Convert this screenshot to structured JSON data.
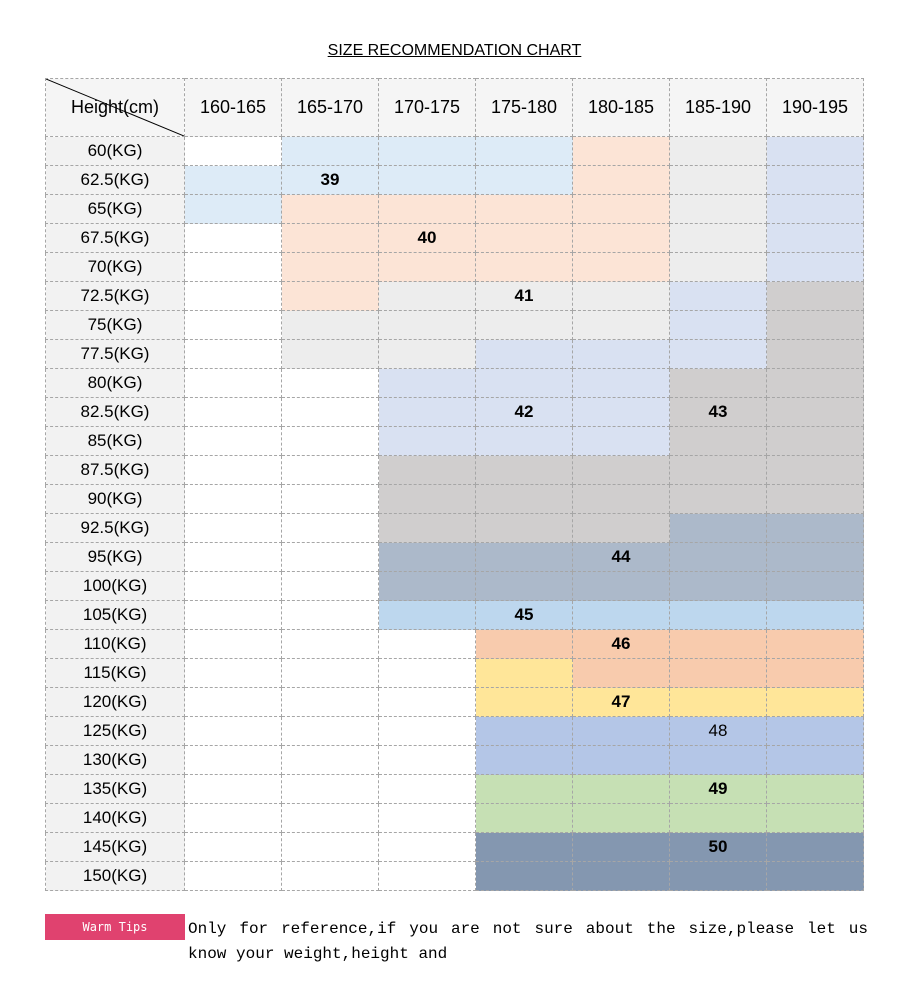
{
  "title": "SIZE RECOMMENDATION CHART",
  "corner_label": "Height(cm)",
  "heights": [
    "160-165",
    "165-170",
    "170-175",
    "175-180",
    "180-185",
    "185-190",
    "190-195"
  ],
  "colors": {
    "W": "#ffffff",
    "L": "#ddebf7",
    "P": "#fce4d6",
    "G": "#ededed",
    "B": "#d9e1f2",
    "D": "#d0cece",
    "S": "#acb9ca",
    "C": "#bdd7ee",
    "O": "#f8cbad",
    "Y": "#ffe699",
    "V": "#b4c6e7",
    "N": "#c6e0b4",
    "K": "#8497b0"
  },
  "rows": [
    {
      "weight": "60(KG)",
      "cells": [
        "W",
        "L",
        "L",
        "L",
        "P",
        "G",
        "B"
      ]
    },
    {
      "weight": "62.5(KG)",
      "cells": [
        "L",
        "L",
        "L",
        "L",
        "P",
        "G",
        "B"
      ]
    },
    {
      "weight": "65(KG)",
      "cells": [
        "L",
        "P",
        "P",
        "P",
        "P",
        "G",
        "B"
      ]
    },
    {
      "weight": "67.5(KG)",
      "cells": [
        "W",
        "P",
        "P",
        "P",
        "P",
        "G",
        "B"
      ]
    },
    {
      "weight": "70(KG)",
      "cells": [
        "W",
        "P",
        "P",
        "P",
        "P",
        "G",
        "B"
      ]
    },
    {
      "weight": "72.5(KG)",
      "cells": [
        "W",
        "P",
        "G",
        "G",
        "G",
        "B",
        "D"
      ]
    },
    {
      "weight": "75(KG)",
      "cells": [
        "W",
        "G",
        "G",
        "G",
        "G",
        "B",
        "D"
      ]
    },
    {
      "weight": "77.5(KG)",
      "cells": [
        "W",
        "G",
        "G",
        "B",
        "B",
        "B",
        "D"
      ]
    },
    {
      "weight": "80(KG)",
      "cells": [
        "W",
        "W",
        "B",
        "B",
        "B",
        "D",
        "D"
      ]
    },
    {
      "weight": "82.5(KG)",
      "cells": [
        "W",
        "W",
        "B",
        "B",
        "B",
        "D",
        "D"
      ]
    },
    {
      "weight": "85(KG)",
      "cells": [
        "W",
        "W",
        "B",
        "B",
        "B",
        "D",
        "D"
      ]
    },
    {
      "weight": "87.5(KG)",
      "cells": [
        "W",
        "W",
        "D",
        "D",
        "D",
        "D",
        "D"
      ]
    },
    {
      "weight": "90(KG)",
      "cells": [
        "W",
        "W",
        "D",
        "D",
        "D",
        "D",
        "D"
      ]
    },
    {
      "weight": "92.5(KG)",
      "cells": [
        "W",
        "W",
        "D",
        "D",
        "D",
        "S",
        "S"
      ]
    },
    {
      "weight": "95(KG)",
      "cells": [
        "W",
        "W",
        "S",
        "S",
        "S",
        "S",
        "S"
      ]
    },
    {
      "weight": "100(KG)",
      "cells": [
        "W",
        "W",
        "S",
        "S",
        "S",
        "S",
        "S"
      ]
    },
    {
      "weight": "105(KG)",
      "cells": [
        "W",
        "W",
        "C",
        "C",
        "C",
        "C",
        "C"
      ]
    },
    {
      "weight": "110(KG)",
      "cells": [
        "W",
        "W",
        "W",
        "O",
        "O",
        "O",
        "O"
      ]
    },
    {
      "weight": "115(KG)",
      "cells": [
        "W",
        "W",
        "W",
        "Y",
        "O",
        "O",
        "O"
      ]
    },
    {
      "weight": "120(KG)",
      "cells": [
        "W",
        "W",
        "W",
        "Y",
        "Y",
        "Y",
        "Y"
      ]
    },
    {
      "weight": "125(KG)",
      "cells": [
        "W",
        "W",
        "W",
        "V",
        "V",
        "V",
        "V"
      ]
    },
    {
      "weight": "130(KG)",
      "cells": [
        "W",
        "W",
        "W",
        "V",
        "V",
        "V",
        "V"
      ]
    },
    {
      "weight": "135(KG)",
      "cells": [
        "W",
        "W",
        "W",
        "N",
        "N",
        "N",
        "N"
      ]
    },
    {
      "weight": "140(KG)",
      "cells": [
        "W",
        "W",
        "W",
        "N",
        "N",
        "N",
        "N"
      ]
    },
    {
      "weight": "145(KG)",
      "cells": [
        "W",
        "W",
        "W",
        "K",
        "K",
        "K",
        "K"
      ]
    },
    {
      "weight": "150(KG)",
      "cells": [
        "W",
        "W",
        "W",
        "K",
        "K",
        "K",
        "K"
      ]
    }
  ],
  "sizes": [
    {
      "row": 1,
      "col": 1,
      "label": "39",
      "bold": true
    },
    {
      "row": 3,
      "col": 2,
      "label": "40",
      "bold": true
    },
    {
      "row": 5,
      "col": 3,
      "label": "41",
      "bold": true
    },
    {
      "row": 9,
      "col": 3,
      "label": "42",
      "bold": true
    },
    {
      "row": 9,
      "col": 5,
      "label": "43",
      "bold": true
    },
    {
      "row": 14,
      "col": 4,
      "label": "44",
      "bold": true
    },
    {
      "row": 16,
      "col": 3,
      "label": "45",
      "bold": true
    },
    {
      "row": 17,
      "col": 4,
      "label": "46",
      "bold": true
    },
    {
      "row": 19,
      "col": 4,
      "label": "47",
      "bold": true
    },
    {
      "row": 20,
      "col": 5,
      "label": "48",
      "bold": false
    },
    {
      "row": 22,
      "col": 5,
      "label": "49",
      "bold": true
    },
    {
      "row": 24,
      "col": 5,
      "label": "50",
      "bold": true
    }
  ],
  "warm_tips": {
    "label": "Warm Tips",
    "text": "Only for reference,if you are not sure about the size,please let us know your weight,height and"
  }
}
